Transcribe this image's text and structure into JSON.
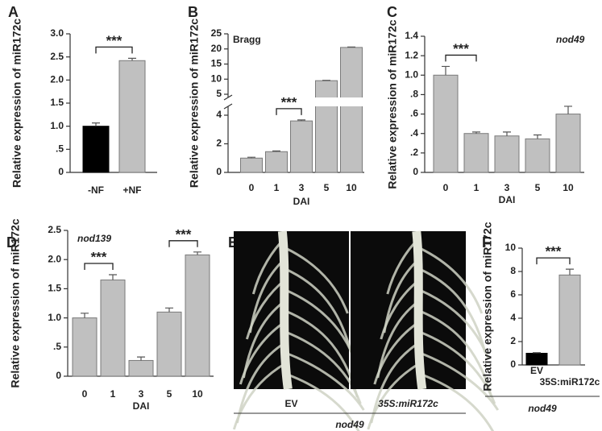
{
  "chart_data": [
    {
      "type": "bar",
      "panel_label": "A",
      "ylabel": "Relative expression of miR172c",
      "categories": [
        "-NF",
        "+NF"
      ],
      "values": [
        1.0,
        2.42
      ],
      "errors": [
        0.07,
        0.05
      ],
      "colors": [
        "#000000",
        "#c0c0c0"
      ],
      "ylim": [
        0,
        3
      ],
      "yticks": [
        0,
        {
          "value": 0.5,
          "label": ".5"
        },
        {
          "value": 1,
          "label": "1.0"
        },
        1.5,
        {
          "value": 2,
          "label": "2.0"
        },
        2.5,
        {
          "value": 3,
          "label": "3.0"
        }
      ],
      "significance": [
        {
          "label": "***",
          "between": [
            "-NF",
            "+NF"
          ]
        }
      ]
    },
    {
      "type": "bar",
      "panel_label": "B",
      "ylabel": "Relative expression of miR172c",
      "xlabel": "DAI",
      "annotation": "Bragg",
      "categories": [
        "0",
        "1",
        "3",
        "5",
        "10"
      ],
      "values": [
        1.0,
        1.45,
        3.6,
        9.5,
        20.5
      ],
      "errors": [
        0.06,
        0.05,
        0.07,
        0.1,
        0.15
      ],
      "color": "#c0c0c0",
      "ylim": [
        0,
        25
      ],
      "ybreak": [
        4,
        5
      ],
      "yticks": [
        0,
        2,
        4,
        5,
        10,
        15,
        20,
        25
      ],
      "significance": [
        {
          "label": "***",
          "between": [
            "1",
            "3"
          ]
        }
      ]
    },
    {
      "type": "bar",
      "panel_label": "C",
      "ylabel": "Relative expression of miR172c",
      "xlabel": "DAI",
      "annotation": "nod49",
      "categories": [
        "0",
        "1",
        "3",
        "5",
        "10"
      ],
      "values": [
        1.0,
        0.4,
        0.375,
        0.345,
        0.6
      ],
      "errors": [
        0.09,
        0.015,
        0.04,
        0.04,
        0.08
      ],
      "color": "#c0c0c0",
      "ylim": [
        0,
        1.4
      ],
      "yticks": [
        0,
        {
          "value": 0.2,
          "label": ".2"
        },
        {
          "value": 0.4,
          "label": ".4"
        },
        {
          "value": 0.6,
          "label": ".6"
        },
        {
          "value": 0.8,
          "label": ".8"
        },
        {
          "value": 1,
          "label": "1.0"
        },
        1.2,
        1.4
      ],
      "significance": [
        {
          "label": "***",
          "between": [
            "0",
            "1"
          ]
        }
      ]
    },
    {
      "type": "bar",
      "panel_label": "D",
      "ylabel": "Relative expression of miR172c",
      "xlabel": "DAI",
      "annotation": "nod139",
      "categories": [
        "0",
        "1",
        "3",
        "5",
        "10"
      ],
      "values": [
        1.0,
        1.65,
        0.27,
        1.1,
        2.08
      ],
      "errors": [
        0.08,
        0.09,
        0.06,
        0.07,
        0.05
      ],
      "color": "#c0c0c0",
      "ylim": [
        0,
        2.5
      ],
      "yticks": [
        0,
        {
          "value": 0.5,
          "label": ".5"
        },
        {
          "value": 1,
          "label": "1.0"
        },
        1.5,
        {
          "value": 2,
          "label": "2.0"
        },
        2.5
      ],
      "significance": [
        {
          "label": "***",
          "between": [
            "0",
            "1"
          ]
        },
        {
          "label": "***",
          "between": [
            "5",
            "10"
          ]
        }
      ]
    },
    {
      "type": "image",
      "panel_label": "E",
      "labels": [
        "EV",
        "35S:miR172c"
      ],
      "group_label": "nod49"
    },
    {
      "type": "bar",
      "panel_label": "F",
      "ylabel": "Relative expression of miR172c",
      "group_label": "nod49",
      "categories": [
        "EV",
        "35S:miR172c"
      ],
      "values": [
        1.0,
        7.7
      ],
      "errors": [
        0.05,
        0.5
      ],
      "colors": [
        "#000000",
        "#c0c0c0"
      ],
      "ylim": [
        0,
        10
      ],
      "yticks": [
        0,
        2,
        4,
        6,
        8,
        10
      ],
      "significance": [
        {
          "label": "***",
          "between": [
            "EV",
            "35S:miR172c"
          ]
        }
      ]
    }
  ]
}
